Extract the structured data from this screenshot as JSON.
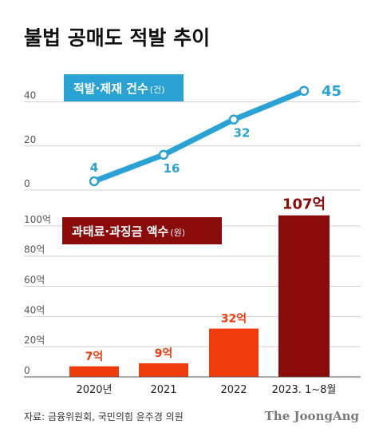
{
  "title": "불법 공매도 적발 추이",
  "source": "자료: 금융위원회, 국민의힘 윤주경 의원",
  "brand": "The JoongAng",
  "colors": {
    "line": "#2aa3d4",
    "bar": "#f03c0c",
    "bar_highlight": "#8b0a0a",
    "grid": "#cfcfcf"
  },
  "chart_data": [
    {
      "type": "line",
      "legend": "적발·제재 건수",
      "legend_unit": "(건)",
      "categories": [
        "2020년",
        "2021",
        "2022",
        "2023. 1~8월"
      ],
      "values": [
        4,
        16,
        32,
        45
      ],
      "data_labels": [
        "4",
        "16",
        "32",
        "45"
      ],
      "ylim": [
        0,
        50
      ],
      "yticks": [
        "0",
        "20",
        "40"
      ],
      "grid": true,
      "legend_position": "top-left"
    },
    {
      "type": "bar",
      "legend": "과태료·과징금 액수",
      "legend_unit": "(원)",
      "categories": [
        "2020년",
        "2021",
        "2022",
        "2023. 1~8월"
      ],
      "values": [
        7,
        9,
        32,
        107
      ],
      "data_labels": [
        "7억",
        "9억",
        "32억",
        "107억"
      ],
      "ylim": [
        0,
        110
      ],
      "yticks": [
        "0",
        "20억",
        "40억",
        "60억",
        "80억",
        "100억"
      ],
      "grid": true,
      "legend_position": "top-left"
    }
  ]
}
